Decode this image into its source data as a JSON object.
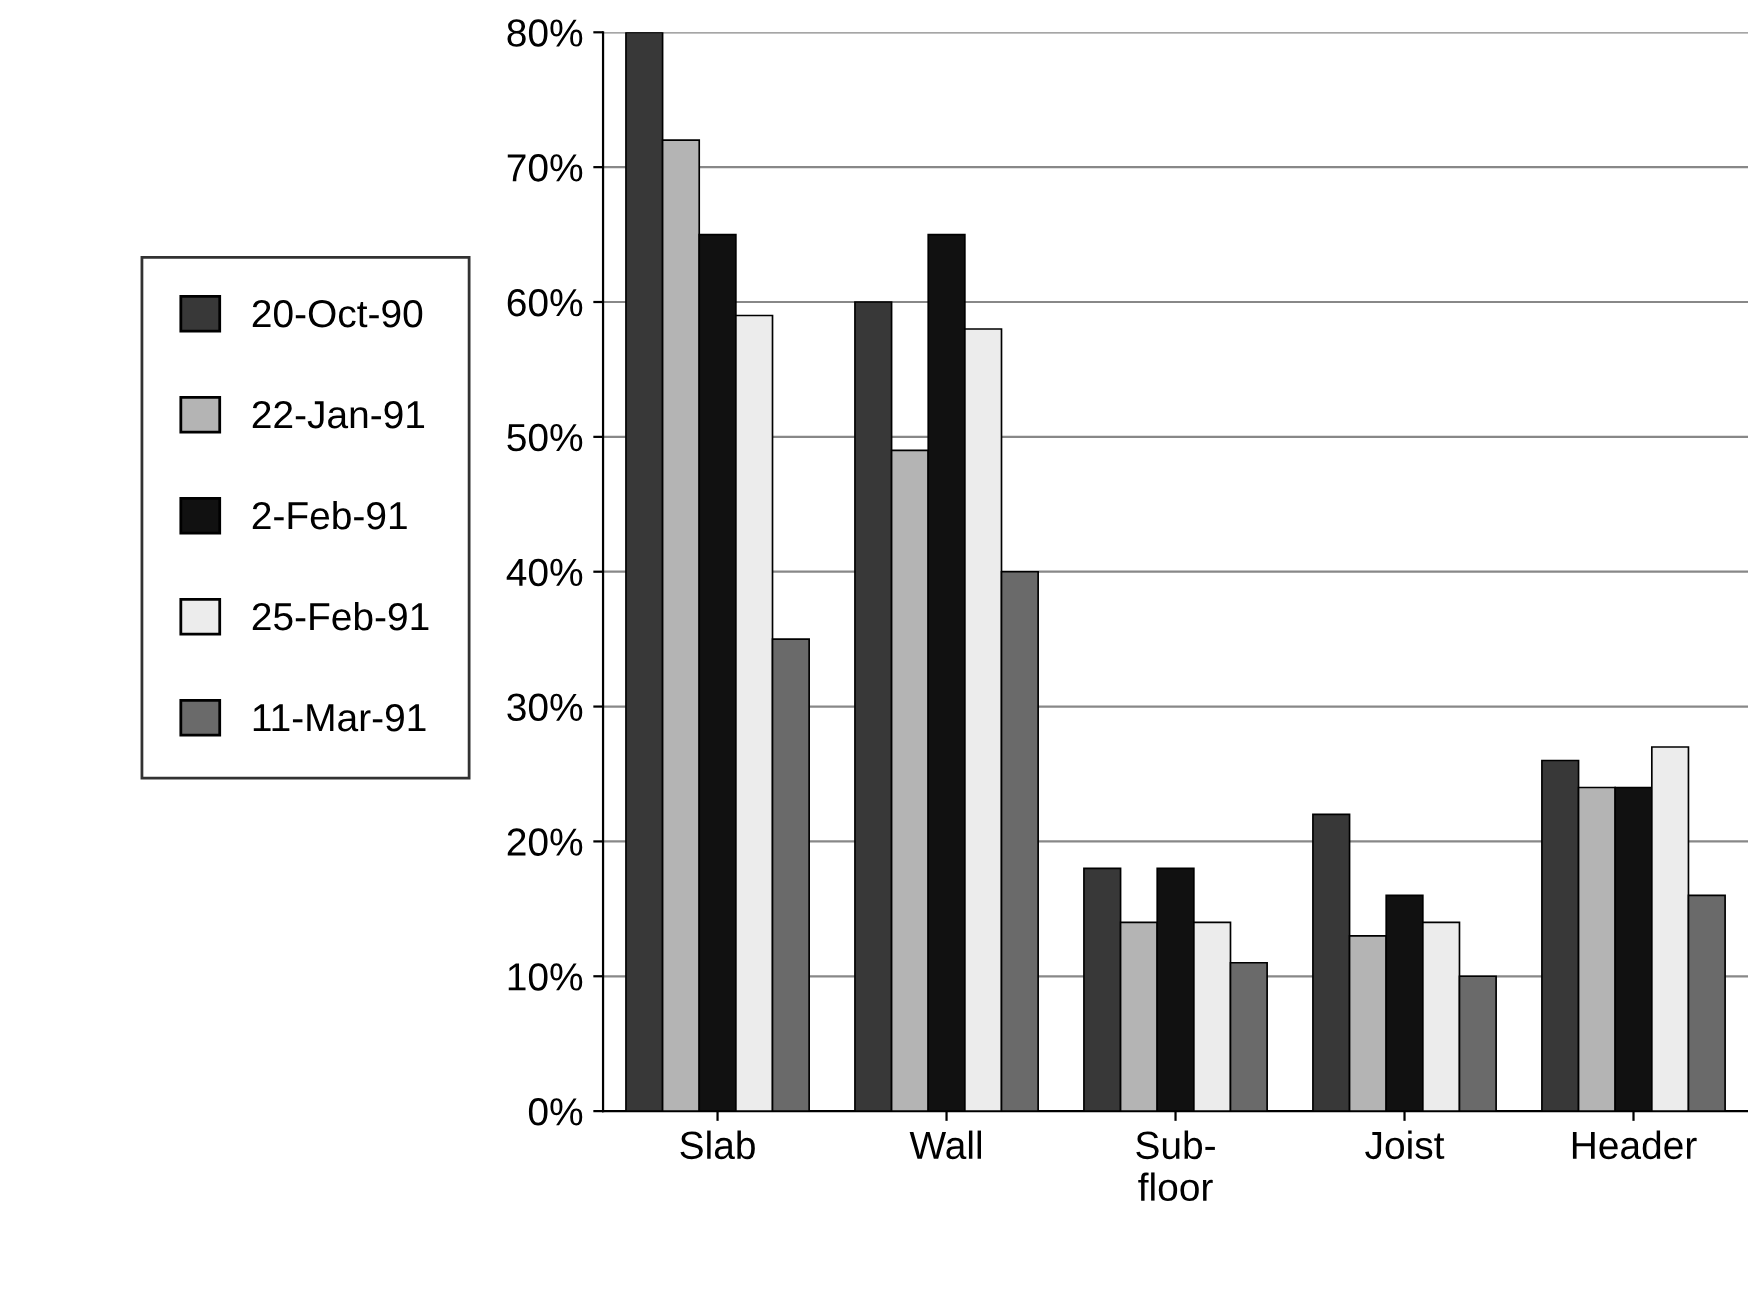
{
  "chart_data": {
    "type": "bar",
    "categories": [
      "Slab",
      "Wall",
      "Sub-\nfloor",
      "Joist",
      "Header"
    ],
    "series": [
      {
        "name": "20-Oct-90",
        "color": "#383838",
        "values": [
          80,
          60,
          18,
          22,
          26
        ]
      },
      {
        "name": "22-Jan-91",
        "color": "#b4b4b4",
        "values": [
          72,
          49,
          14,
          13,
          24
        ]
      },
      {
        "name": "2-Feb-91",
        "color": "#111111",
        "values": [
          65,
          65,
          18,
          16,
          24
        ]
      },
      {
        "name": "25-Feb-91",
        "color": "#ececec",
        "values": [
          59,
          58,
          14,
          14,
          27
        ]
      },
      {
        "name": "11-Mar-91",
        "color": "#6a6a6a",
        "values": [
          35,
          40,
          11,
          10,
          16
        ]
      }
    ],
    "ylim": [
      0,
      80
    ],
    "yticks": [
      {
        "value": 0,
        "label": "0%"
      },
      {
        "value": 10,
        "label": "10%"
      },
      {
        "value": 20,
        "label": "20%"
      },
      {
        "value": 30,
        "label": "30%"
      },
      {
        "value": 40,
        "label": "40%"
      },
      {
        "value": 50,
        "label": "50%"
      },
      {
        "value": 60,
        "label": "60%"
      },
      {
        "value": 70,
        "label": "70%"
      },
      {
        "value": 80,
        "label": "80%"
      }
    ],
    "grid": "y",
    "legend": "left"
  }
}
